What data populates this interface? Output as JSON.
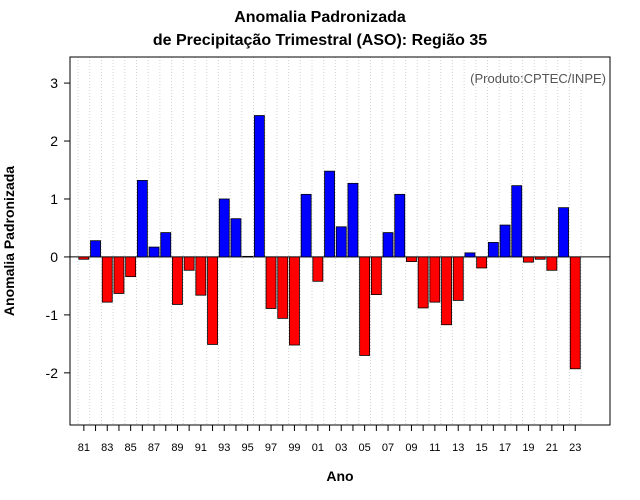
{
  "chart_data": {
    "type": "bar",
    "title": "Anomalia Padronizada",
    "subtitle": "de Precipitação Trimestral (ASO): Região 35",
    "xlabel": "Ano",
    "ylabel": "Anomalia Padronizada",
    "annotation": "(Produto:CPTEC/INPE)",
    "ylim": [
      -2.9,
      3.45
    ],
    "yticks": [
      -2,
      -1,
      0,
      1,
      2,
      3
    ],
    "xtick_labels": [
      "81",
      "83",
      "85",
      "87",
      "89",
      "91",
      "93",
      "95",
      "97",
      "99",
      "01",
      "03",
      "05",
      "07",
      "09",
      "11",
      "13",
      "15",
      "17",
      "19",
      "21",
      "23"
    ],
    "categories": [
      "1981",
      "1982",
      "1983",
      "1984",
      "1985",
      "1986",
      "1987",
      "1988",
      "1989",
      "1990",
      "1991",
      "1992",
      "1993",
      "1994",
      "1995",
      "1996",
      "1997",
      "1998",
      "1999",
      "2000",
      "2001",
      "2002",
      "2003",
      "2004",
      "2005",
      "2006",
      "2007",
      "2008",
      "2009",
      "2010",
      "2011",
      "2012",
      "2013",
      "2014",
      "2015",
      "2016",
      "2017",
      "2018",
      "2019",
      "2020",
      "2021",
      "2022",
      "2023"
    ],
    "values": [
      -0.04,
      0.28,
      -0.78,
      -0.63,
      -0.34,
      1.32,
      0.17,
      0.42,
      -0.82,
      -0.23,
      -0.66,
      -1.51,
      1.0,
      0.66,
      0.01,
      2.44,
      -0.89,
      -1.06,
      -1.52,
      1.08,
      -0.42,
      1.48,
      0.52,
      1.27,
      -1.7,
      -0.65,
      0.42,
      1.08,
      -0.08,
      -0.88,
      -0.78,
      -1.17,
      -0.75,
      0.07,
      -0.19,
      0.25,
      0.55,
      1.23,
      -0.09,
      -0.04,
      -0.23,
      0.85,
      -1.93
    ],
    "colors": {
      "positive": "#0000ff",
      "negative": "#ff0000",
      "grid": "#d3d3d3"
    },
    "grid": true
  }
}
